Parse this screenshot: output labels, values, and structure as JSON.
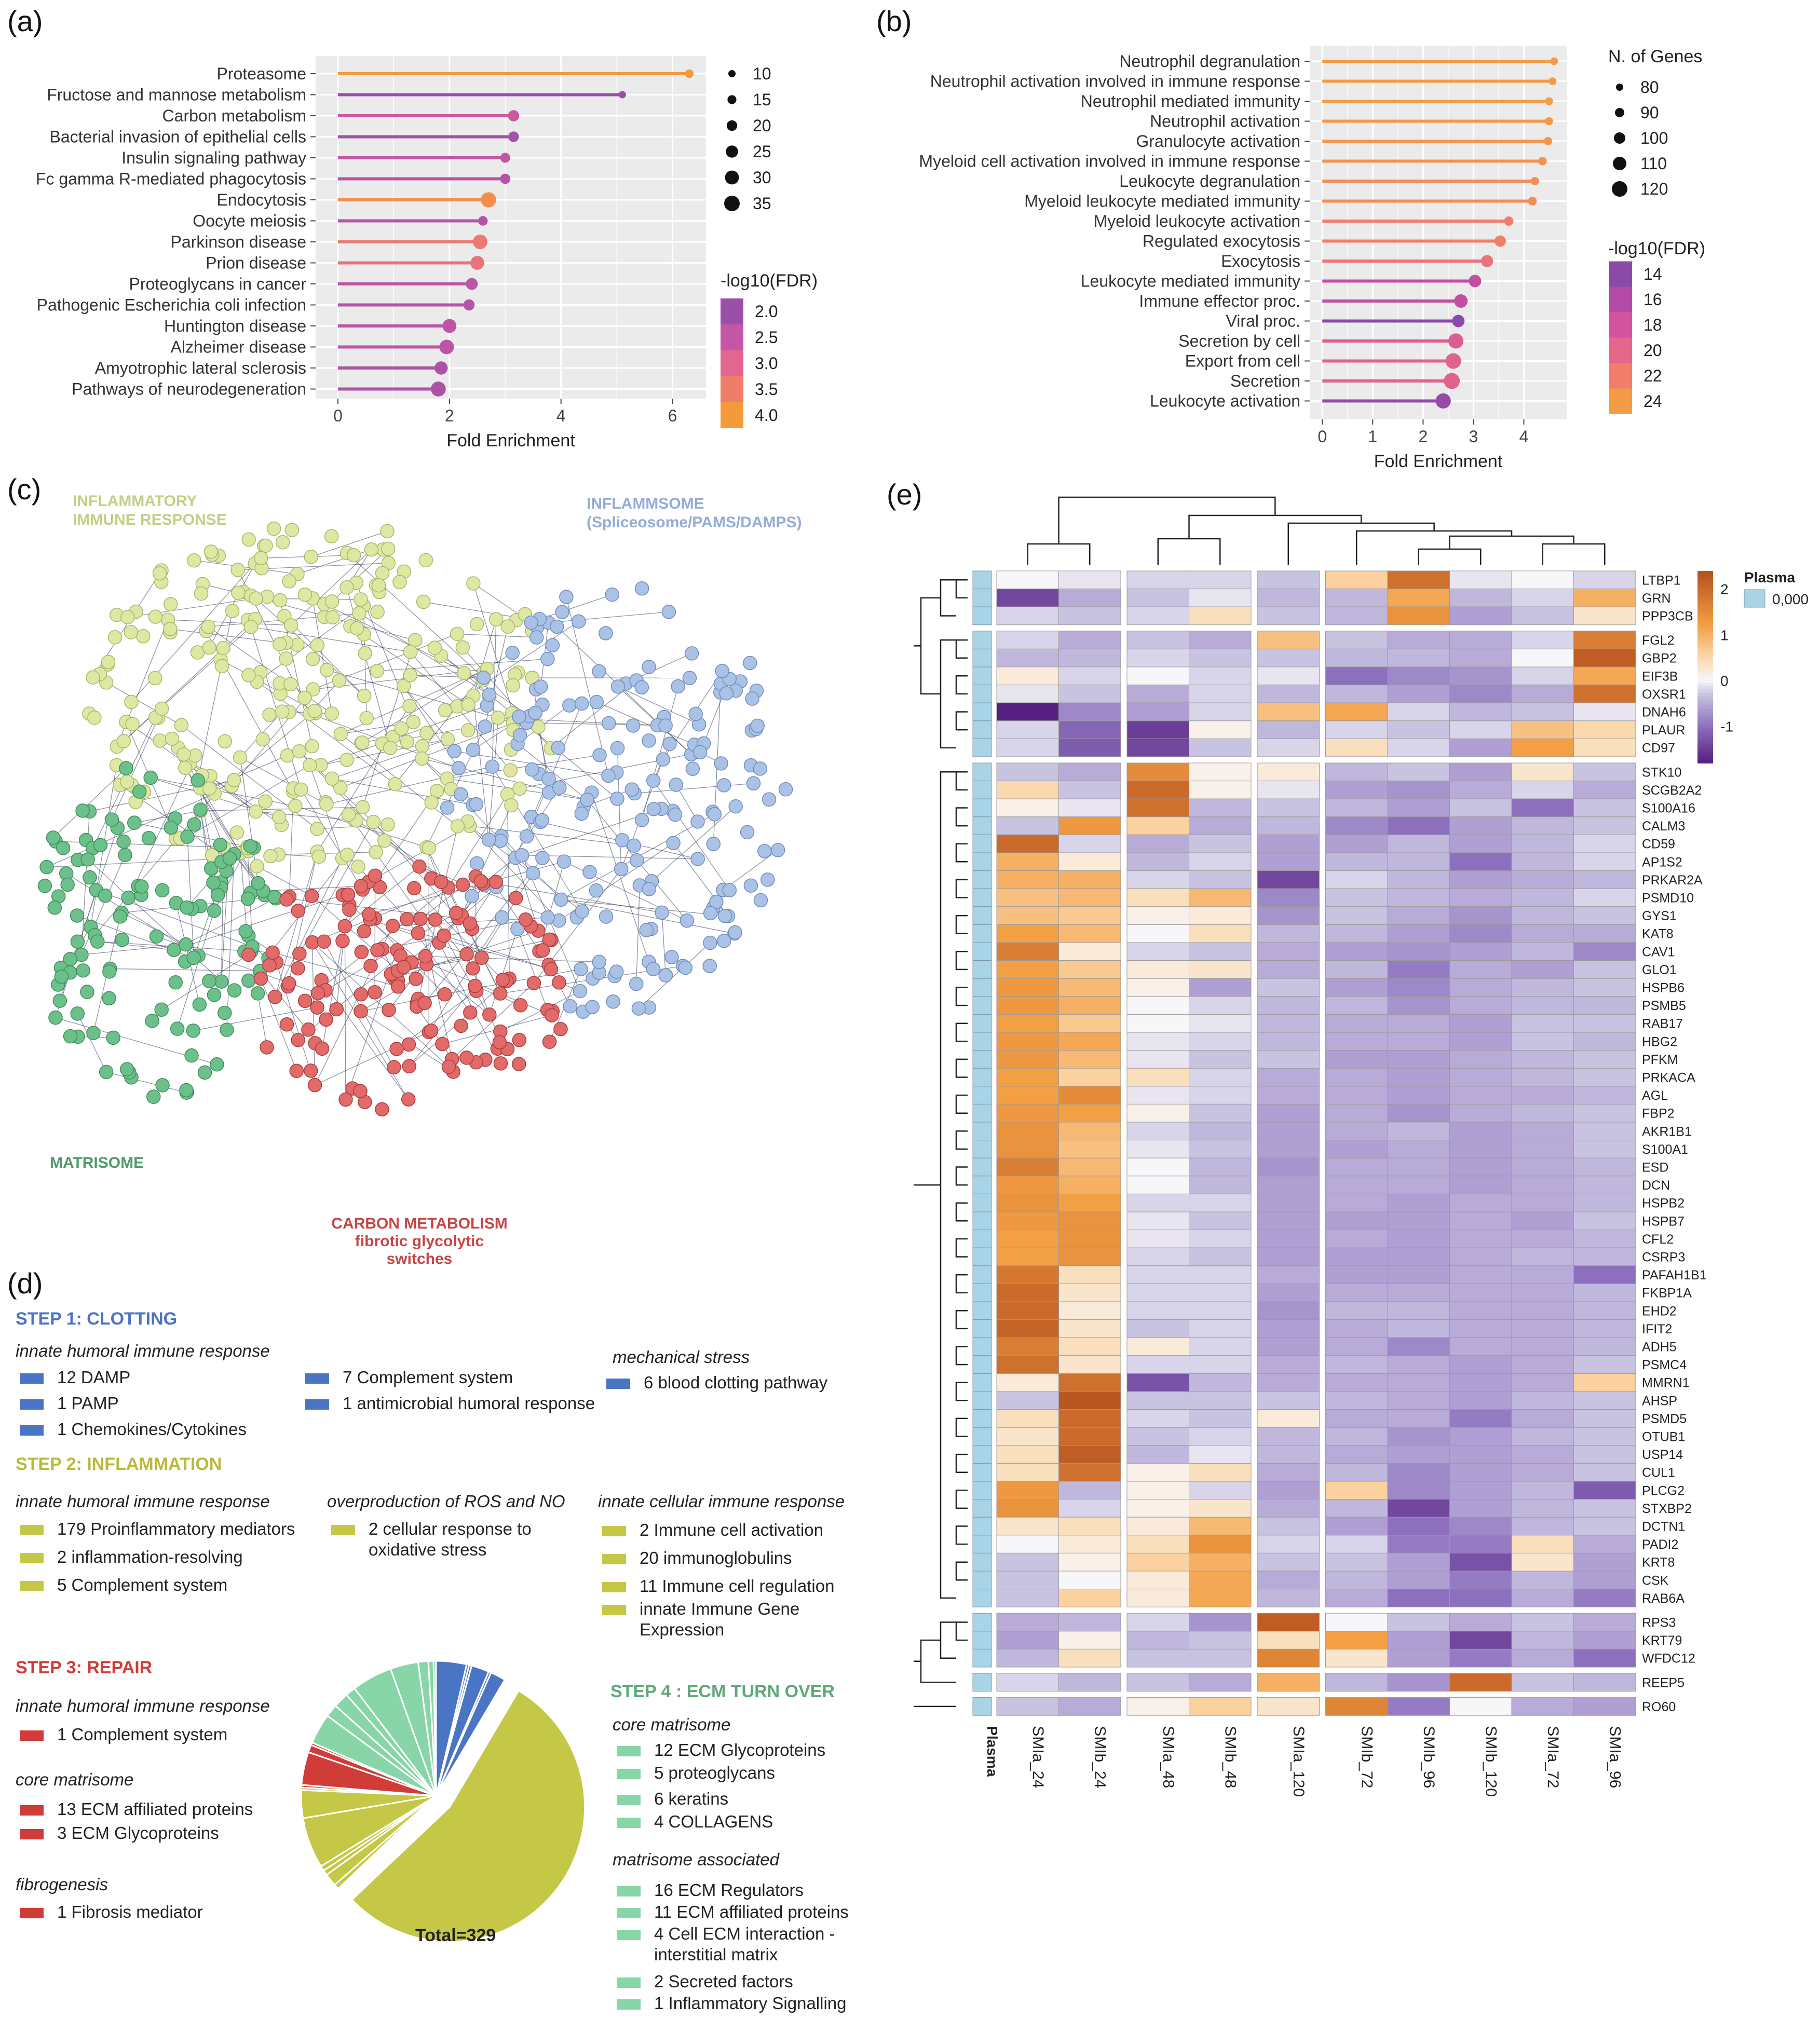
{
  "panels": {
    "a": "(a)",
    "b": "(b)",
    "c": "(c)",
    "d": "(d)",
    "e": "(e)"
  },
  "colors": {
    "plot_bg": "#ebebeb",
    "grid": "#ffffff",
    "clotting": "#4a74c4",
    "inflammation": "#c5c846",
    "repair": "#d03c38",
    "ecm": "#88d5a8",
    "inflam_label": "#c3cf86",
    "inflamm_label": "#93acd8",
    "matri_label": "#4f9a6b",
    "carbon_label": "#c74545"
  },
  "chart_data": [
    {
      "id": "a",
      "type": "lollipop",
      "title": "",
      "xlabel": "Fold Enrichment",
      "ylabel": "",
      "xlim": [
        -0.4,
        6.6
      ],
      "xticks": [
        0,
        2,
        4,
        6
      ],
      "categories": [
        "Proteasome",
        "Fructose and mannose metabolism",
        "Carbon metabolism",
        "Bacterial invasion of epithelial cells",
        "Insulin signaling pathway",
        "Fc gamma R-mediated phagocytosis",
        "Endocytosis",
        "Oocyte meiosis",
        "Parkinson disease",
        "Prion disease",
        "Proteoglycans in cancer",
        "Pathogenic Escherichia coli infection",
        "Huntington disease",
        "Alzheimer disease",
        "Amyotrophic lateral sclerosis",
        "Pathways of neurodegeneration"
      ],
      "values": [
        6.3,
        5.1,
        3.15,
        3.15,
        3.0,
        3.0,
        2.7,
        2.6,
        2.55,
        2.5,
        2.4,
        2.35,
        2.0,
        1.95,
        1.85,
        1.8
      ],
      "genes": [
        14,
        10,
        22,
        20,
        18,
        19,
        34,
        17,
        32,
        30,
        24,
        22,
        30,
        32,
        28,
        33
      ],
      "neglog10_fdr": [
        4.1,
        1.9,
        2.6,
        2.1,
        2.5,
        2.3,
        3.8,
        2.3,
        3.4,
        3.3,
        2.4,
        2.3,
        2.4,
        2.4,
        2.2,
        2.2
      ],
      "size_legend": {
        "title": "N. of Genes",
        "values": [
          10,
          15,
          20,
          25,
          30,
          35
        ]
      },
      "color_legend": {
        "title": "-log10(FDR)",
        "values": [
          2.0,
          2.5,
          3.0,
          3.5,
          4.0
        ],
        "labels": [
          "2.0",
          "2.5",
          "3.0",
          "3.5",
          "4.0"
        ],
        "colors": [
          "#9b4fa8",
          "#c556a6",
          "#e2668f",
          "#f07c6a",
          "#f59a3b"
        ]
      }
    },
    {
      "id": "b",
      "type": "lollipop",
      "title": "",
      "xlabel": "Fold Enrichment",
      "ylabel": "",
      "xlim": [
        -0.25,
        4.85
      ],
      "xticks": [
        0,
        1,
        2,
        3,
        4
      ],
      "categories": [
        "Neutrophil degranulation",
        "Neutrophil activation involved in immune response",
        "Neutrophil mediated immunity",
        "Neutrophil activation",
        "Granulocyte activation",
        "Myeloid cell activation involved in immune response",
        "Leukocyte degranulation",
        "Myeloid leukocyte mediated immunity",
        "Myeloid leukocyte activation",
        "Regulated exocytosis",
        "Exocytosis",
        "Leukocyte mediated immunity",
        "Immune effector proc.",
        "Viral proc.",
        "Secretion by cell",
        "Export from cell",
        "Secretion",
        "Leukocyte activation"
      ],
      "values": [
        4.6,
        4.57,
        4.5,
        4.5,
        4.48,
        4.37,
        4.22,
        4.17,
        3.7,
        3.53,
        3.27,
        3.03,
        2.75,
        2.7,
        2.65,
        2.6,
        2.57,
        2.4
      ],
      "genes": [
        82,
        82,
        83,
        84,
        85,
        86,
        85,
        87,
        90,
        100,
        103,
        105,
        110,
        105,
        118,
        120,
        122,
        118
      ],
      "neglog10_fdr": [
        24.2,
        24.0,
        24.0,
        23.8,
        23.6,
        23.4,
        23.0,
        23.0,
        22.0,
        22.0,
        21.0,
        17.0,
        17.0,
        14.0,
        19.0,
        19.5,
        19.5,
        14.5
      ],
      "size_legend": {
        "title": "N. of Genes",
        "values": [
          80,
          90,
          100,
          110,
          120
        ]
      },
      "color_legend": {
        "title": "-log10(FDR)",
        "values": [
          14,
          16,
          18,
          20,
          22,
          24
        ],
        "labels": [
          "14",
          "16",
          "18",
          "20",
          "22",
          "24"
        ],
        "colors": [
          "#8a4ba8",
          "#b24aa6",
          "#d2549e",
          "#e5668a",
          "#f07e6a",
          "#f49b46"
        ]
      }
    },
    {
      "id": "e",
      "type": "heatmap",
      "title": "",
      "xlabel": "",
      "ylabel": "",
      "annotation_title": "Plasma",
      "annotation_value": "0,000",
      "annotation_row_label": "Plasma",
      "columns": [
        "SMIa_24",
        "SMIb_24",
        "SMIa_48",
        "SMIb_48",
        "SMIa_120",
        "SMIb_72",
        "SMIb_96",
        "SMIb_120",
        "SMIa_72",
        "SMIa_96"
      ],
      "column_split_after": [
        1,
        3,
        4
      ],
      "rows": [
        "LTBP1",
        "GRN",
        "PPP3CB",
        "FGL2",
        "GBP2",
        "EIF3B",
        "OXSR1",
        "DNAH6",
        "PLAUR",
        "CD97",
        "STK10",
        "SCGB2A2",
        "S100A16",
        "CALM3",
        "CD59",
        "AP1S2",
        "PRKAR2A",
        "PSMD10",
        "GYS1",
        "KAT8",
        "CAV1",
        "GLO1",
        "HSPB6",
        "PSMB5",
        "RAB17",
        "HBG2",
        "PFKM",
        "PRKACA",
        "AGL",
        "FBP2",
        "AKR1B1",
        "S100A1",
        "ESD",
        "DCN",
        "HSPB2",
        "HSPB7",
        "CFL2",
        "CSRP3",
        "PAFAH1B1",
        "FKBP1A",
        "EHD2",
        "IFIT2",
        "ADH5",
        "PSMC4",
        "MMRN1",
        "AHSP",
        "PSMD5",
        "OTUB1",
        "USP14",
        "CUL1",
        "PLCG2",
        "STXBP2",
        "DCTN1",
        "PADI2",
        "KRT8",
        "CSK",
        "RAB6A",
        "RPS3",
        "KRT79",
        "WFDC12",
        "REEP5",
        "RO60"
      ],
      "row_groups": [
        3,
        7,
        47,
        3,
        1,
        1
      ],
      "legend_ticks": [
        2,
        1,
        0,
        -1
      ],
      "legend_range": [
        -1.8,
        2.4
      ],
      "values": [
        [
          0.0,
          -0.1,
          -0.2,
          -0.2,
          -0.3,
          0.6,
          1.9,
          -0.1,
          0.0,
          -0.2
        ],
        [
          -1.4,
          -0.5,
          -0.3,
          -0.1,
          -0.4,
          -0.4,
          1.1,
          -0.4,
          -0.2,
          1.0
        ],
        [
          -0.2,
          -0.3,
          -0.2,
          0.4,
          -0.3,
          -0.4,
          1.4,
          -0.6,
          -0.3,
          0.3
        ],
        [
          -0.2,
          -0.5,
          -0.3,
          -0.5,
          0.8,
          -0.3,
          -0.5,
          -0.5,
          -0.2,
          1.7
        ],
        [
          -0.4,
          -0.4,
          -0.2,
          -0.3,
          -0.3,
          -0.4,
          -0.4,
          -0.5,
          0.0,
          2.2
        ],
        [
          0.2,
          -0.2,
          0.0,
          -0.2,
          -0.1,
          -1.0,
          -0.8,
          -0.7,
          -0.2,
          1.1
        ],
        [
          -0.1,
          -0.3,
          -0.5,
          -0.2,
          -0.4,
          -0.4,
          -0.6,
          -0.8,
          -0.5,
          1.9
        ],
        [
          -1.8,
          -0.8,
          -0.6,
          -0.2,
          0.8,
          1.1,
          -0.2,
          -0.4,
          -0.3,
          -0.1
        ],
        [
          -0.2,
          -1.1,
          -1.5,
          0.1,
          -0.4,
          -0.2,
          -0.3,
          -0.2,
          0.8,
          0.5
        ],
        [
          -0.2,
          -1.2,
          -1.4,
          -0.3,
          -0.2,
          0.4,
          -0.2,
          -0.6,
          1.2,
          0.4
        ],
        [
          -0.3,
          -0.5,
          1.5,
          0.1,
          0.2,
          -0.4,
          -0.3,
          -0.6,
          0.3,
          -0.3
        ],
        [
          0.5,
          -0.3,
          2.0,
          0.1,
          -0.1,
          -0.6,
          -0.7,
          -0.5,
          -0.2,
          -0.5
        ],
        [
          0.1,
          -0.1,
          1.9,
          -0.4,
          -0.3,
          -0.4,
          -0.6,
          -0.3,
          -1.0,
          -0.3
        ],
        [
          -0.3,
          1.3,
          0.6,
          -0.5,
          -0.4,
          -0.8,
          -1.0,
          -0.6,
          -0.4,
          -0.3
        ],
        [
          2.0,
          -0.2,
          -0.5,
          -0.3,
          -0.6,
          -0.6,
          -0.4,
          -0.6,
          -0.4,
          -0.2
        ],
        [
          1.0,
          0.2,
          -0.4,
          -0.2,
          -0.6,
          -0.4,
          -0.4,
          -1.0,
          -0.4,
          -0.2
        ],
        [
          1.0,
          1.0,
          -0.2,
          -0.3,
          -1.4,
          -0.2,
          -0.4,
          -0.6,
          -0.5,
          -0.4
        ],
        [
          0.8,
          0.9,
          0.4,
          0.9,
          -0.8,
          -0.3,
          -0.4,
          -0.5,
          -0.4,
          -0.2
        ],
        [
          0.8,
          0.7,
          0.1,
          0.2,
          -0.7,
          -0.3,
          -0.5,
          -0.7,
          -0.4,
          -0.3
        ],
        [
          1.2,
          0.9,
          0.0,
          0.4,
          -0.4,
          -0.4,
          -0.6,
          -0.8,
          -0.5,
          -0.5
        ],
        [
          1.7,
          0.2,
          -0.2,
          -0.3,
          -0.5,
          -0.6,
          -0.7,
          -0.6,
          -0.4,
          -0.8
        ],
        [
          1.2,
          0.7,
          0.2,
          0.3,
          -0.5,
          -0.4,
          -0.9,
          -0.5,
          -0.6,
          -0.3
        ],
        [
          1.3,
          0.9,
          0.1,
          -0.6,
          -0.3,
          -0.6,
          -0.8,
          -0.5,
          -0.4,
          -0.3
        ],
        [
          1.3,
          1.0,
          0.0,
          -0.2,
          -0.4,
          -0.4,
          -0.7,
          -0.5,
          -0.4,
          -0.4
        ],
        [
          1.2,
          0.7,
          0.0,
          -0.1,
          -0.4,
          -0.5,
          -0.5,
          -0.6,
          -0.3,
          -0.3
        ],
        [
          1.3,
          1.1,
          -0.1,
          -0.2,
          -0.4,
          -0.5,
          -0.5,
          -0.6,
          -0.3,
          -0.4
        ],
        [
          1.3,
          0.9,
          -0.1,
          -0.3,
          -0.3,
          -0.6,
          -0.6,
          -0.5,
          -0.4,
          -0.3
        ],
        [
          1.2,
          0.6,
          0.4,
          -0.2,
          -0.5,
          -0.5,
          -0.6,
          -0.5,
          -0.4,
          -0.3
        ],
        [
          1.2,
          1.5,
          -0.1,
          -0.2,
          -0.5,
          -0.5,
          -0.6,
          -0.5,
          -0.5,
          -0.4
        ],
        [
          1.3,
          1.2,
          0.1,
          -0.3,
          -0.6,
          -0.5,
          -0.7,
          -0.5,
          -0.4,
          -0.3
        ],
        [
          1.4,
          0.9,
          -0.2,
          -0.4,
          -0.6,
          -0.5,
          -0.4,
          -0.6,
          -0.5,
          -0.3
        ],
        [
          1.4,
          0.8,
          -0.1,
          -0.3,
          -0.6,
          -0.6,
          -0.5,
          -0.6,
          -0.5,
          -0.3
        ],
        [
          1.7,
          0.9,
          0.0,
          -0.4,
          -0.7,
          -0.5,
          -0.5,
          -0.6,
          -0.5,
          -0.4
        ],
        [
          1.3,
          1.0,
          0.0,
          -0.4,
          -0.6,
          -0.5,
          -0.5,
          -0.6,
          -0.5,
          -0.4
        ],
        [
          1.4,
          1.2,
          -0.2,
          -0.2,
          -0.6,
          -0.5,
          -0.6,
          -0.5,
          -0.5,
          -0.4
        ],
        [
          1.3,
          1.4,
          -0.1,
          -0.3,
          -0.6,
          -0.6,
          -0.6,
          -0.5,
          -0.6,
          -0.3
        ],
        [
          1.2,
          1.4,
          -0.1,
          -0.2,
          -0.6,
          -0.5,
          -0.6,
          -0.5,
          -0.5,
          -0.4
        ],
        [
          1.2,
          1.4,
          -0.2,
          -0.3,
          -0.6,
          -0.6,
          -0.6,
          -0.5,
          -0.4,
          -0.4
        ],
        [
          1.8,
          0.4,
          -0.2,
          -0.2,
          -0.5,
          -0.6,
          -0.6,
          -0.5,
          -0.5,
          -1.0
        ],
        [
          2.0,
          0.3,
          -0.2,
          -0.2,
          -0.6,
          -0.5,
          -0.5,
          -0.5,
          -0.5,
          -0.4
        ],
        [
          2.0,
          0.2,
          -0.2,
          -0.2,
          -0.7,
          -0.4,
          -0.4,
          -0.5,
          -0.5,
          -0.4
        ],
        [
          2.1,
          0.3,
          -0.3,
          -0.2,
          -0.6,
          -0.5,
          -0.4,
          -0.5,
          -0.5,
          -0.4
        ],
        [
          1.7,
          0.4,
          0.2,
          -0.2,
          -0.6,
          -0.5,
          -0.8,
          -0.5,
          -0.5,
          -0.4
        ],
        [
          1.9,
          0.3,
          -0.2,
          -0.2,
          -0.5,
          -0.4,
          -0.5,
          -0.6,
          -0.5,
          -0.3
        ],
        [
          0.2,
          1.9,
          -1.3,
          -0.4,
          -0.5,
          -0.5,
          -0.5,
          -0.6,
          -0.5,
          0.6
        ],
        [
          -0.3,
          2.3,
          -0.3,
          -0.3,
          -0.3,
          -0.4,
          -0.5,
          -0.6,
          -0.4,
          -0.3
        ],
        [
          0.4,
          2.0,
          -0.2,
          -0.3,
          0.2,
          -0.5,
          -0.5,
          -0.9,
          -0.5,
          -0.3
        ],
        [
          0.3,
          2.0,
          -0.3,
          -0.2,
          -0.4,
          -0.4,
          -0.7,
          -0.6,
          -0.4,
          -0.3
        ],
        [
          0.4,
          2.2,
          -0.4,
          -0.1,
          -0.4,
          -0.5,
          -0.6,
          -0.6,
          -0.5,
          -0.3
        ],
        [
          0.4,
          1.9,
          0.1,
          0.4,
          -0.5,
          -0.4,
          -0.8,
          -0.6,
          -0.5,
          -0.3
        ],
        [
          1.3,
          -0.4,
          0.1,
          -0.2,
          -0.6,
          0.6,
          -0.8,
          -0.6,
          -0.4,
          -1.2
        ],
        [
          1.4,
          -0.2,
          0.1,
          0.3,
          -0.5,
          -0.4,
          -1.4,
          -0.6,
          -0.4,
          -0.3
        ],
        [
          0.3,
          0.4,
          0.2,
          0.9,
          -0.3,
          -0.6,
          -1.0,
          -0.8,
          -0.4,
          -0.3
        ],
        [
          0.0,
          0.2,
          0.4,
          1.4,
          -0.2,
          -0.2,
          -0.9,
          -0.9,
          0.4,
          -0.5
        ],
        [
          -0.3,
          0.1,
          0.6,
          1.0,
          -0.3,
          -0.3,
          -0.6,
          -1.3,
          0.3,
          -0.6
        ],
        [
          -0.3,
          0.0,
          0.2,
          1.1,
          -0.5,
          -0.4,
          -0.6,
          -0.9,
          -0.4,
          -0.6
        ],
        [
          -0.3,
          0.6,
          0.2,
          1.1,
          -0.4,
          -0.5,
          -1.0,
          -1.0,
          -0.5,
          -0.9
        ],
        [
          -0.5,
          -0.4,
          -0.2,
          -0.7,
          2.2,
          0.0,
          -0.3,
          -0.5,
          -0.3,
          -0.5
        ],
        [
          -0.6,
          0.1,
          -0.4,
          -0.3,
          0.4,
          1.2,
          -0.6,
          -1.4,
          -0.4,
          -0.6
        ],
        [
          -0.4,
          0.4,
          -0.3,
          -0.3,
          1.6,
          0.3,
          -0.6,
          -0.9,
          -0.5,
          -1.0
        ],
        [
          -0.2,
          -0.4,
          -0.3,
          -0.5,
          1.0,
          -0.4,
          -0.7,
          2.0,
          -0.3,
          -0.4
        ],
        [
          -0.3,
          -0.5,
          0.1,
          0.6,
          0.3,
          1.6,
          -0.9,
          0.0,
          -0.5,
          -0.6
        ]
      ]
    }
  ],
  "network": {
    "label_inflammatory": "INFLAMMATORY\nIMMUNE RESPONSE",
    "label_inflammsome_1": "INFLAMMSOME",
    "label_inflammsome_2": "(Spliceosome/PAMS/DAMPS)",
    "label_matrisome": "MATRISOME",
    "label_carbon_1": "CARBON METABOLISM",
    "label_carbon_2": "fibrotic glycolytic",
    "label_carbon_3": "switches"
  },
  "steps": {
    "step1": {
      "title": "STEP 1: CLOTTING",
      "cat1": "innate humoral immune response",
      "cat2": "mechanical stress",
      "items": [
        "12 DAMP",
        "1 PAMP",
        "1 Chemokines/Cytokines",
        "7 Complement system",
        "1 antimicrobial humoral response",
        "6 blood clotting pathway"
      ]
    },
    "step2": {
      "title": "STEP 2: INFLAMMATION",
      "cat1": "innate humoral immune response",
      "cat2": "overproduction of ROS and NO",
      "cat3": "innate cellular immune response",
      "items": [
        "179 Proinflammatory mediators",
        "2 inflammation-resolving",
        "5 Complement system",
        "2 cellular response to\noxidative stress",
        "2 Immune cell activation",
        "20 immunoglobulins",
        "11 Immune cell regulation",
        "innate Immune Gene Expression"
      ]
    },
    "step3": {
      "title": "STEP 3: REPAIR",
      "cat1": "innate humoral immune response",
      "cat2": "core matrisome",
      "cat3": "fibrogenesis",
      "items": [
        "1 Complement system",
        "13 ECM affiliated proteins",
        "3 ECM Glycoproteins",
        "1 Fibrosis mediator"
      ]
    },
    "step4": {
      "title": "STEP 4 : ECM TURN OVER",
      "cat1": "core matrisome",
      "cat2": "matrisome associated",
      "items": [
        "12 ECM Glycoproteins",
        "5 proteoglycans",
        "6 keratins",
        "4 COLLAGENS",
        "16 ECM Regulators",
        "11 ECM affiliated proteins",
        "4 Cell ECM interaction -\ninterstitial matrix",
        "2 Secreted factors",
        "1 Inflammatory Signalling"
      ]
    },
    "total": "Total=329"
  }
}
